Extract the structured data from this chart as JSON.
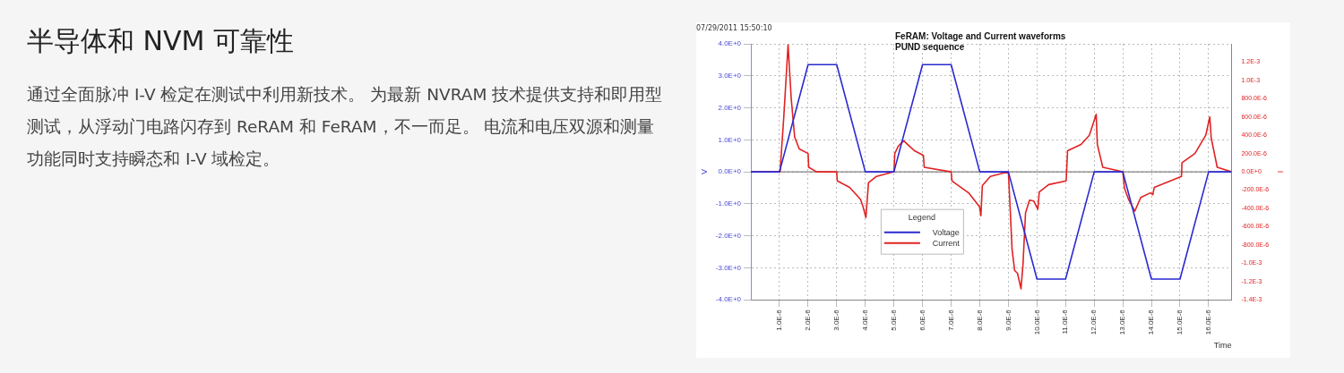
{
  "chart_data": {
    "type": "line",
    "title": "FeRAM: Voltage and Current waveforms",
    "subtitle": "PUND sequence",
    "xlabel": "Time",
    "ylabel": "V",
    "y2label": "I",
    "legend_title": "Legend",
    "annotations": [
      "半导体和 NVM 可靠性",
      "通过全面脉冲 I-V 检定在测试中利用新技术。 为最新 NVRAM 技术提供支持和即用型测试，从浮动门电路闪存到 ReRAM 和 FeRAM，不一而足。 电流和电压双源和测量功能同时支持瞬态和 I-V 域检定。",
      "07/29/2011 15:50:10"
    ],
    "series": [
      {
        "name": "Voltage",
        "color": "#2a2ad0",
        "x": [
          0,
          1e-06,
          2e-06,
          3e-06,
          4e-06,
          5e-06,
          6e-06,
          7e-06,
          8e-06,
          9e-06,
          1e-05,
          1.1e-05,
          1.2e-05,
          1.3e-05,
          1.4e-05,
          1.5e-05,
          1.6e-05,
          1.68e-05
        ],
        "values": [
          0,
          0,
          3.35,
          3.35,
          0,
          0,
          3.35,
          3.35,
          0,
          0,
          -3.35,
          -3.35,
          0,
          0,
          -3.35,
          -3.35,
          0,
          0
        ]
      },
      {
        "name": "Current",
        "color": "#e02222",
        "axis": "y2",
        "x": [
          0,
          1.02e-06,
          1.15e-06,
          1.3e-06,
          1.41e-06,
          1.53e-06,
          1.69e-06,
          2e-06,
          2.02e-06,
          2.3e-06,
          3e-06,
          3.02e-06,
          3.45e-06,
          3.83e-06,
          3.92e-06,
          4.02e-06,
          4.11e-06,
          4.39e-06,
          5e-06,
          5.03e-06,
          5.15e-06,
          5.34e-06,
          5.72e-06,
          6.03e-06,
          6.06e-06,
          7e-06,
          7.03e-06,
          7.61e-06,
          7.99e-06,
          8.04e-06,
          8.09e-06,
          8.37e-06,
          9e-06,
          9.05e-06,
          9.13e-06,
          9.22e-06,
          9.32e-06,
          9.44e-06,
          9.51e-06,
          9.6e-06,
          9.74e-06,
          9.89e-06,
          1.003e-05,
          1.008e-05,
          1.041e-05,
          1.102e-05,
          1.107e-05,
          1.154e-05,
          1.183e-05,
          1.201e-05,
          1.207e-05,
          1.211e-05,
          1.23e-05,
          1.3e-05,
          1.306e-05,
          1.32e-05,
          1.342e-05,
          1.363e-05,
          1.396e-05,
          1.405e-05,
          1.41e-05,
          1.505e-05,
          1.507e-05,
          1.552e-05,
          1.59e-05,
          1.604e-05,
          1.609e-05,
          1.63e-05,
          1.68e-05
        ],
        "values": [
          0,
          0,
          0.0006,
          0.00139,
          0.0008,
          0.00038,
          0.00025,
          0.0002,
          5e-05,
          0,
          0,
          -0.0001,
          -0.00017,
          -0.0003,
          -0.00038,
          -0.0005,
          -0.00012,
          -5e-05,
          0,
          0.0002,
          0.00028,
          0.00034,
          0.00023,
          0.00018,
          5e-05,
          0,
          -0.0001,
          -0.00023,
          -0.00038,
          -0.00048,
          -0.00015,
          -5e-05,
          0,
          -0.00032,
          -0.00085,
          -0.00108,
          -0.00111,
          -0.00128,
          -0.00102,
          -0.00045,
          -0.00031,
          -0.00032,
          -0.00041,
          -0.00022,
          -0.00014,
          -0.0001,
          0.00023,
          0.0003,
          0.0004,
          0.00057,
          0.00063,
          0.0003,
          5e-05,
          0,
          -0.00018,
          -0.0003,
          -0.00043,
          -0.00028,
          -0.00023,
          -0.00025,
          -0.00017,
          -5e-05,
          0.0001,
          0.0002,
          0.0004,
          0.0006,
          0.00037,
          5e-05,
          0
        ]
      }
    ],
    "xlim": [
      0,
      1.68e-05
    ],
    "xticks": [
      {
        "value": 1e-06,
        "label": "1.0E-6"
      },
      {
        "value": 2e-06,
        "label": "2.0E-6"
      },
      {
        "value": 3e-06,
        "label": "3.0E-6"
      },
      {
        "value": 4e-06,
        "label": "4.0E-6"
      },
      {
        "value": 5e-06,
        "label": "5.0E-6"
      },
      {
        "value": 6e-06,
        "label": "6.0E-6"
      },
      {
        "value": 7e-06,
        "label": "7.0E-6"
      },
      {
        "value": 8e-06,
        "label": "8.0E-6"
      },
      {
        "value": 9e-06,
        "label": "9.0E-6"
      },
      {
        "value": 1e-05,
        "label": "10.0E-6"
      },
      {
        "value": 1.1e-05,
        "label": "11.0E-6"
      },
      {
        "value": 1.2e-05,
        "label": "12.0E-6"
      },
      {
        "value": 1.3e-05,
        "label": "13.0E-6"
      },
      {
        "value": 1.4e-05,
        "label": "14.0E-6"
      },
      {
        "value": 1.5e-05,
        "label": "15.0E-6"
      },
      {
        "value": 1.6e-05,
        "label": "16.0E-6"
      }
    ],
    "ylim": [
      -4,
      4
    ],
    "yticks": [
      {
        "value": 4,
        "label": "4.0E+0"
      },
      {
        "value": 3,
        "label": "3.0E+0"
      },
      {
        "value": 2,
        "label": "2.0E+0"
      },
      {
        "value": 1,
        "label": "1.0E+0"
      },
      {
        "value": 0,
        "label": "0.0E+0"
      },
      {
        "value": -1,
        "label": "-1.0E+0"
      },
      {
        "value": -2,
        "label": "-2.0E+0"
      },
      {
        "value": -3,
        "label": "-3.0E+0"
      },
      {
        "value": -4,
        "label": "-4.0E+0"
      }
    ],
    "y2lim": [
      -0.0014,
      0.0014
    ],
    "y2ticks": [
      {
        "value": 0.0012,
        "label": "1.2E-3"
      },
      {
        "value": 0.001,
        "label": "1.0E-3"
      },
      {
        "value": 0.0008,
        "label": "800.0E-6"
      },
      {
        "value": 0.0006,
        "label": "600.0E-6"
      },
      {
        "value": 0.0004,
        "label": "400.0E-6"
      },
      {
        "value": 0.0002,
        "label": "200.0E-6"
      },
      {
        "value": 0,
        "label": "0.0E+0"
      },
      {
        "value": -0.0002,
        "label": "-200.0E-6"
      },
      {
        "value": -0.0004,
        "label": "-400.0E-6"
      },
      {
        "value": -0.0006,
        "label": "-600.0E-6"
      },
      {
        "value": -0.0008,
        "label": "-800.0E-6"
      },
      {
        "value": -0.001,
        "label": "-1.0E-3"
      },
      {
        "value": -0.0012,
        "label": "-1.2E-3"
      },
      {
        "value": -0.0014,
        "label": "-1.4E-3"
      }
    ],
    "ref_lines": [
      {
        "axis": "y",
        "value": 0,
        "color": "#666666"
      }
    ],
    "grid": true,
    "legend": "bottom"
  }
}
